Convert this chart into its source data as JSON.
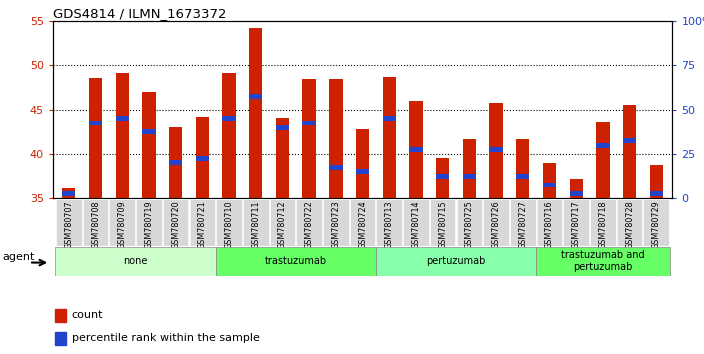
{
  "title": "GDS4814 / ILMN_1673372",
  "samples": [
    "GSM780707",
    "GSM780708",
    "GSM780709",
    "GSM780719",
    "GSM780720",
    "GSM780721",
    "GSM780710",
    "GSM780711",
    "GSM780712",
    "GSM780722",
    "GSM780723",
    "GSM780724",
    "GSM780713",
    "GSM780714",
    "GSM780715",
    "GSM780725",
    "GSM780726",
    "GSM780727",
    "GSM780716",
    "GSM780717",
    "GSM780718",
    "GSM780728",
    "GSM780729"
  ],
  "counts": [
    36.2,
    48.6,
    49.2,
    47.0,
    43.1,
    44.2,
    49.1,
    54.2,
    44.1,
    48.5,
    48.5,
    42.8,
    48.7,
    46.0,
    39.5,
    41.7,
    45.8,
    41.7,
    39.0,
    37.2,
    43.6,
    45.5,
    38.8
  ],
  "percentile_ranks": [
    35.5,
    43.5,
    44.0,
    42.5,
    39.0,
    39.5,
    44.0,
    46.5,
    43.0,
    43.5,
    38.5,
    38.0,
    44.0,
    40.5,
    37.5,
    37.5,
    40.5,
    37.5,
    36.5,
    35.5,
    41.0,
    41.5,
    35.5
  ],
  "groups": [
    {
      "label": "none",
      "start": 0,
      "end": 6,
      "color": "#ccffcc"
    },
    {
      "label": "trastuzumab",
      "start": 6,
      "end": 12,
      "color": "#66ff66"
    },
    {
      "label": "pertuzumab",
      "start": 12,
      "end": 18,
      "color": "#88ffaa"
    },
    {
      "label": "trastuzumab and\npertuzumab",
      "start": 18,
      "end": 23,
      "color": "#66ff66"
    }
  ],
  "bar_color": "#cc2200",
  "marker_color": "#2244cc",
  "ylim_left": [
    35,
    55
  ],
  "ylim_right": [
    0,
    100
  ],
  "yticks_left": [
    35,
    40,
    45,
    50,
    55
  ],
  "yticks_right": [
    0,
    25,
    50,
    75,
    100
  ],
  "ylabel_left_color": "#cc2200",
  "ylabel_right_color": "#2244cc",
  "tick_bg": "#dddddd",
  "legend_count_label": "count",
  "legend_pct_label": "percentile rank within the sample",
  "agent_label": "agent",
  "bar_width": 0.5
}
